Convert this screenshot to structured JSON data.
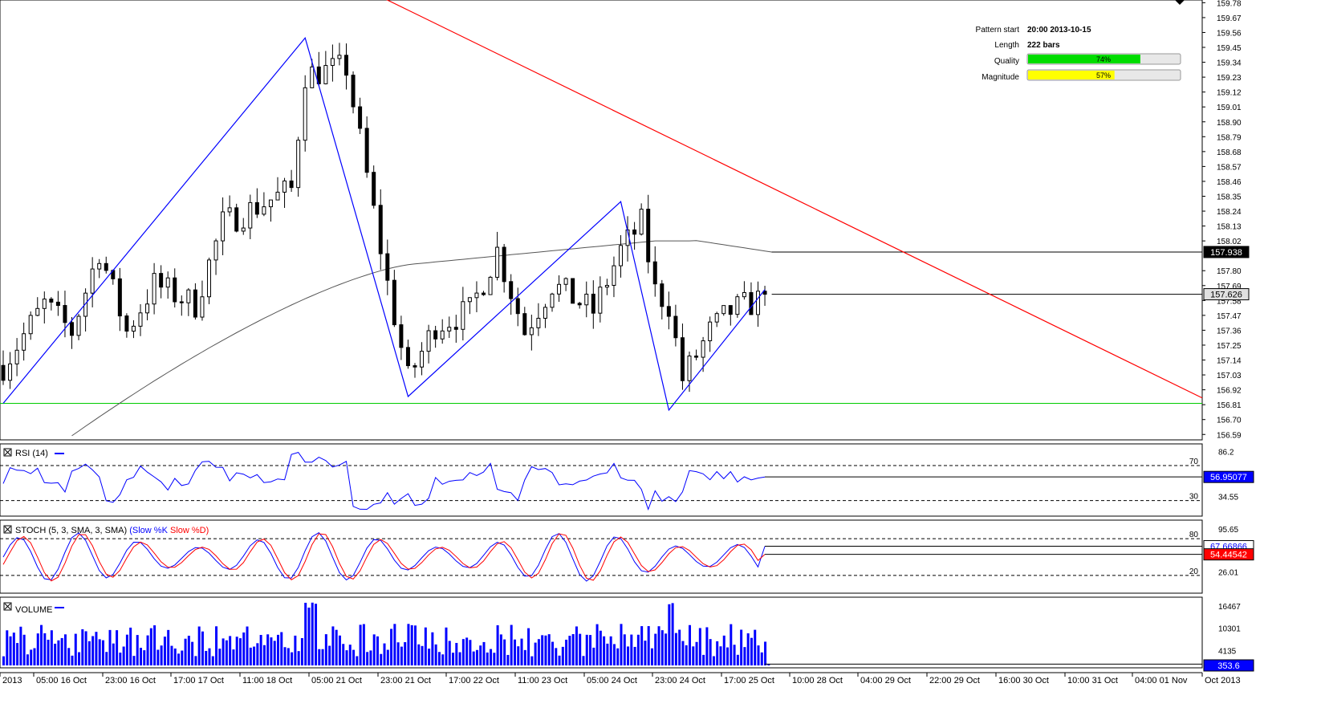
{
  "info_panel": {
    "pattern_start_label": "Pattern start",
    "pattern_start_value": "20:00 2013-10-15",
    "length_label": "Length",
    "length_value": "222 bars",
    "quality_label": "Quality",
    "quality_value": "74%",
    "quality_fraction": 0.74,
    "magnitude_label": "Magnitude",
    "magnitude_value": "57%",
    "magnitude_fraction": 0.57
  },
  "colors": {
    "candle": "#000000",
    "pattern_lines": "#0000ff",
    "resistance_line": "#ff0000",
    "support_line": "#00cc00",
    "moving_average": "#555555",
    "rsi": "#0000ff",
    "stoch_k": "#0000ff",
    "stoch_d": "#ff0000",
    "volume": "#0000ff",
    "quality_bar": "#00dd00",
    "magnitude_bar": "#ffff00",
    "last_price_bg": "#e0e0e0",
    "stoch_d_marker_bg": "#ff0000",
    "volume_marker_bg": "#0000ff"
  },
  "chart_data": {
    "type": "candlestick",
    "price_ticks": [
      "159.78",
      "159.67",
      "159.56",
      "159.45",
      "159.34",
      "159.23",
      "159.12",
      "159.01",
      "158.90",
      "158.79",
      "158.68",
      "158.57",
      "158.46",
      "158.35",
      "158.24",
      "158.13",
      "158.02",
      "157.80",
      "157.69",
      "157.58",
      "157.47",
      "157.36",
      "157.25",
      "157.14",
      "157.03",
      "156.92",
      "156.81",
      "156.70",
      "156.59"
    ],
    "price_range": [
      156.55,
      159.8
    ],
    "price_highlight_ma": "157.938",
    "price_highlight_last": "157.626",
    "x_tick_labels": [
      "2013",
      "05:00 16 Oct",
      "23:00 16 Oct",
      "17:00 17 Oct",
      "11:00 18 Oct",
      "05:00 21 Oct",
      "23:00 21 Oct",
      "17:00 22 Oct",
      "11:00 23 Oct",
      "05:00 24 Oct",
      "23:00 24 Oct",
      "17:00 25 Oct",
      "10:00 28 Oct",
      "04:00 29 Oct",
      "22:00 29 Oct",
      "16:00 30 Oct",
      "10:00 31 Oct",
      "04:00 01 Nov",
      "Oct 2013"
    ],
    "key_points": [
      {
        "bar": 0,
        "price": 156.82
      },
      {
        "bar": 44,
        "price": 159.52
      },
      {
        "bar": 59,
        "price": 156.87
      },
      {
        "bar": 90,
        "price": 158.31
      },
      {
        "bar": 97,
        "price": 156.77
      },
      {
        "bar": 111,
        "price": 157.66
      }
    ],
    "resistance": {
      "start_price": 159.88,
      "end_price": 156.86
    },
    "support_level": 156.82,
    "moving_average_end": 157.938,
    "last_price": 157.626,
    "rsi": {
      "title": "RSI (14)",
      "upper_level": "70",
      "lower_level": "30",
      "ticks": [
        "86.2",
        "34.55"
      ],
      "current": "56.95077",
      "range": [
        15,
        92
      ]
    },
    "stochastic": {
      "title_prefix": "STOCH (5, 3, SMA, 3, SMA)",
      "k_label": "(Slow %K",
      "d_label": "Slow %D)",
      "upper_level": "80",
      "lower_level": "20",
      "ticks": [
        "95.65",
        "26.01"
      ],
      "current_k": "67.66866",
      "current_d": "54.44542"
    },
    "volume": {
      "title": "VOLUME",
      "ticks": [
        "16467",
        "10301",
        "4135"
      ],
      "current": "353.6",
      "max": 18000
    }
  }
}
